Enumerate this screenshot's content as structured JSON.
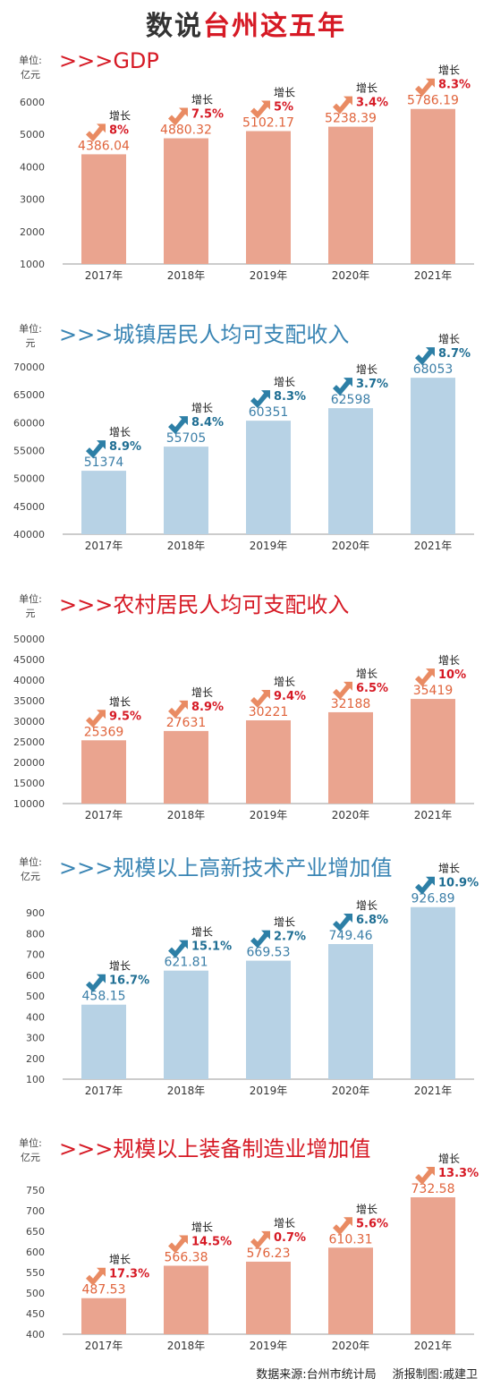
{
  "page": {
    "title_part1": "数说",
    "title_part2": "台州这五年",
    "unit_label": "单位:",
    "growth_label": "增长",
    "source": "数据来源:台州市统计局",
    "credit": "浙报制图:戚建卫"
  },
  "chart_data": [
    {
      "type": "bar",
      "title": ">>>GDP",
      "unit": "亿元",
      "color": "#eaa48f",
      "value_color": "#e0643c",
      "title_color": "#d61a25",
      "growth_color": "#d61a25",
      "categories": [
        "2017年",
        "2018年",
        "2019年",
        "2020年",
        "2021年"
      ],
      "values": [
        4386.04,
        4880.32,
        5102.17,
        5238.39,
        5786.19
      ],
      "value_labels": [
        "4386.04",
        "4880.32",
        "5102.17",
        "5238.39",
        "5786.19"
      ],
      "growth": [
        "8%",
        "7.5%",
        "5%",
        "3.4%",
        "8.3%"
      ],
      "ylim": [
        1000,
        6000
      ],
      "yticks": [
        1000,
        2000,
        3000,
        4000,
        5000,
        6000
      ]
    },
    {
      "type": "bar",
      "title": ">>>城镇居民人均可支配收入",
      "unit": "元",
      "color": "#b7d2e5",
      "value_color": "#3c7fa8",
      "title_color": "#3a85b4",
      "growth_color": "#1f6e93",
      "categories": [
        "2017年",
        "2018年",
        "2019年",
        "2020年",
        "2021年"
      ],
      "values": [
        51374,
        55705,
        60351,
        62598,
        68053
      ],
      "value_labels": [
        "51374",
        "55705",
        "60351",
        "62598",
        "68053"
      ],
      "growth": [
        "8.9%",
        "8.4%",
        "8.3%",
        "3.7%",
        "8.7%"
      ],
      "ylim": [
        40000,
        70000
      ],
      "yticks": [
        40000,
        45000,
        50000,
        55000,
        60000,
        65000,
        70000
      ]
    },
    {
      "type": "bar",
      "title": ">>>农村居民人均可支配收入",
      "unit": "元",
      "color": "#eaa48f",
      "value_color": "#e0643c",
      "title_color": "#d61a25",
      "growth_color": "#d61a25",
      "categories": [
        "2017年",
        "2018年",
        "2019年",
        "2020年",
        "2021年"
      ],
      "values": [
        25369,
        27631,
        30221,
        32188,
        35419
      ],
      "value_labels": [
        "25369",
        "27631",
        "30221",
        "32188",
        "35419"
      ],
      "growth": [
        "9.5%",
        "8.9%",
        "9.4%",
        "6.5%",
        "10%"
      ],
      "ylim": [
        10000,
        50000
      ],
      "yticks": [
        10000,
        15000,
        20000,
        25000,
        30000,
        35000,
        40000,
        45000,
        50000
      ]
    },
    {
      "type": "bar",
      "title": ">>>规模以上高新技术产业增加值",
      "unit": "亿元",
      "color": "#b7d2e5",
      "value_color": "#3c7fa8",
      "title_color": "#3a85b4",
      "growth_color": "#1f6e93",
      "categories": [
        "2017年",
        "2018年",
        "2019年",
        "2020年",
        "2021年"
      ],
      "values": [
        458.15,
        621.81,
        669.53,
        749.46,
        926.89
      ],
      "value_labels": [
        "458.15",
        "621.81",
        "669.53",
        "749.46",
        "926.89"
      ],
      "growth": [
        "16.7%",
        "15.1%",
        "2.7%",
        "6.8%",
        "10.9%"
      ],
      "ylim": [
        100,
        900
      ],
      "yticks": [
        100,
        200,
        300,
        400,
        500,
        600,
        700,
        800,
        900
      ]
    },
    {
      "type": "bar",
      "title": ">>>规模以上装备制造业增加值",
      "unit": "亿元",
      "color": "#eaa48f",
      "value_color": "#e0643c",
      "title_color": "#d61a25",
      "growth_color": "#d61a25",
      "categories": [
        "2017年",
        "2018年",
        "2019年",
        "2020年",
        "2021年"
      ],
      "values": [
        487.53,
        566.38,
        576.23,
        610.31,
        732.58
      ],
      "value_labels": [
        "487.53",
        "566.38",
        "576.23",
        "610.31",
        "732.58"
      ],
      "growth": [
        "17.3%",
        "14.5%",
        "0.7%",
        "5.6%",
        "13.3%"
      ],
      "ylim": [
        400,
        750
      ],
      "yticks": [
        400,
        450,
        500,
        550,
        600,
        650,
        700,
        750
      ]
    }
  ]
}
